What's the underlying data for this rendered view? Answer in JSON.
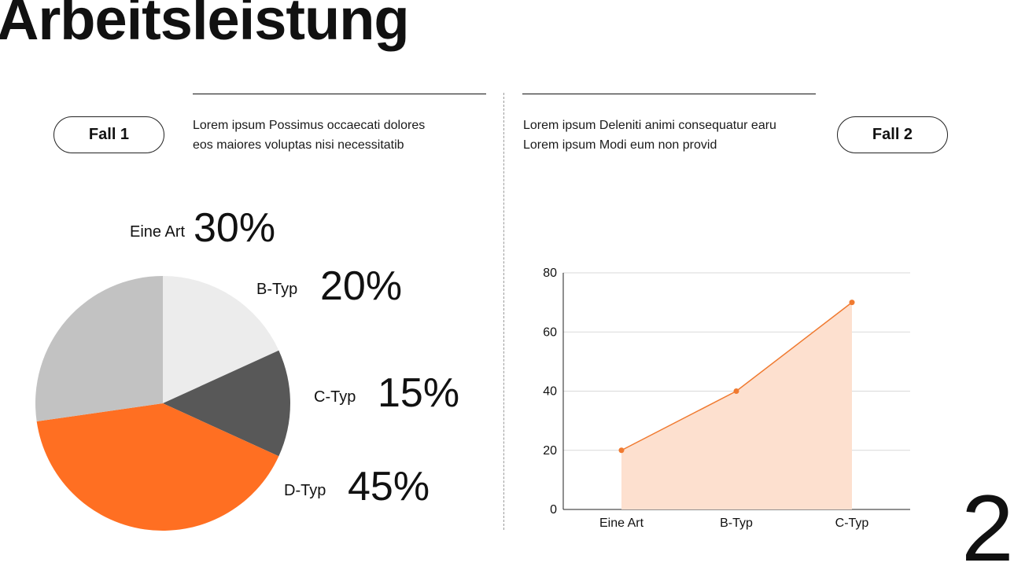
{
  "page": {
    "title": "Arbeitsleistung",
    "page_number": "2"
  },
  "case1": {
    "label": "Fall 1",
    "lines": [
      "Lorem ipsum Possimus occaecati dolores",
      "eos maiores voluptas nisi necessitatib"
    ]
  },
  "case2": {
    "label": "Fall 2",
    "lines": [
      "Lorem ipsum Deleniti animi consequatur earu",
      "Lorem ipsum Modi eum non provid"
    ]
  },
  "colors": {
    "accent": "#ff6f22",
    "light_gray": "#ececec",
    "mid_gray": "#c2c2c2",
    "dark_gray": "#585858",
    "area_fill": "#fde0cf",
    "line": "#f07a30"
  },
  "chart_data": [
    {
      "type": "pie",
      "slices": [
        {
          "label": "Eine Art",
          "value": 30,
          "display": "30%"
        },
        {
          "label": "B-Typ",
          "value": 20,
          "display": "20%"
        },
        {
          "label": "C-Typ",
          "value": 15,
          "display": "15%"
        },
        {
          "label": "D-Typ",
          "value": 45,
          "display": "45%"
        }
      ]
    },
    {
      "type": "area",
      "categories": [
        "Eine Art",
        "B-Typ",
        "C-Typ"
      ],
      "values": [
        20,
        40,
        70
      ],
      "yticks": [
        "0",
        "20",
        "40",
        "60",
        "80"
      ],
      "ylim": [
        0,
        80
      ],
      "grid": true
    }
  ]
}
